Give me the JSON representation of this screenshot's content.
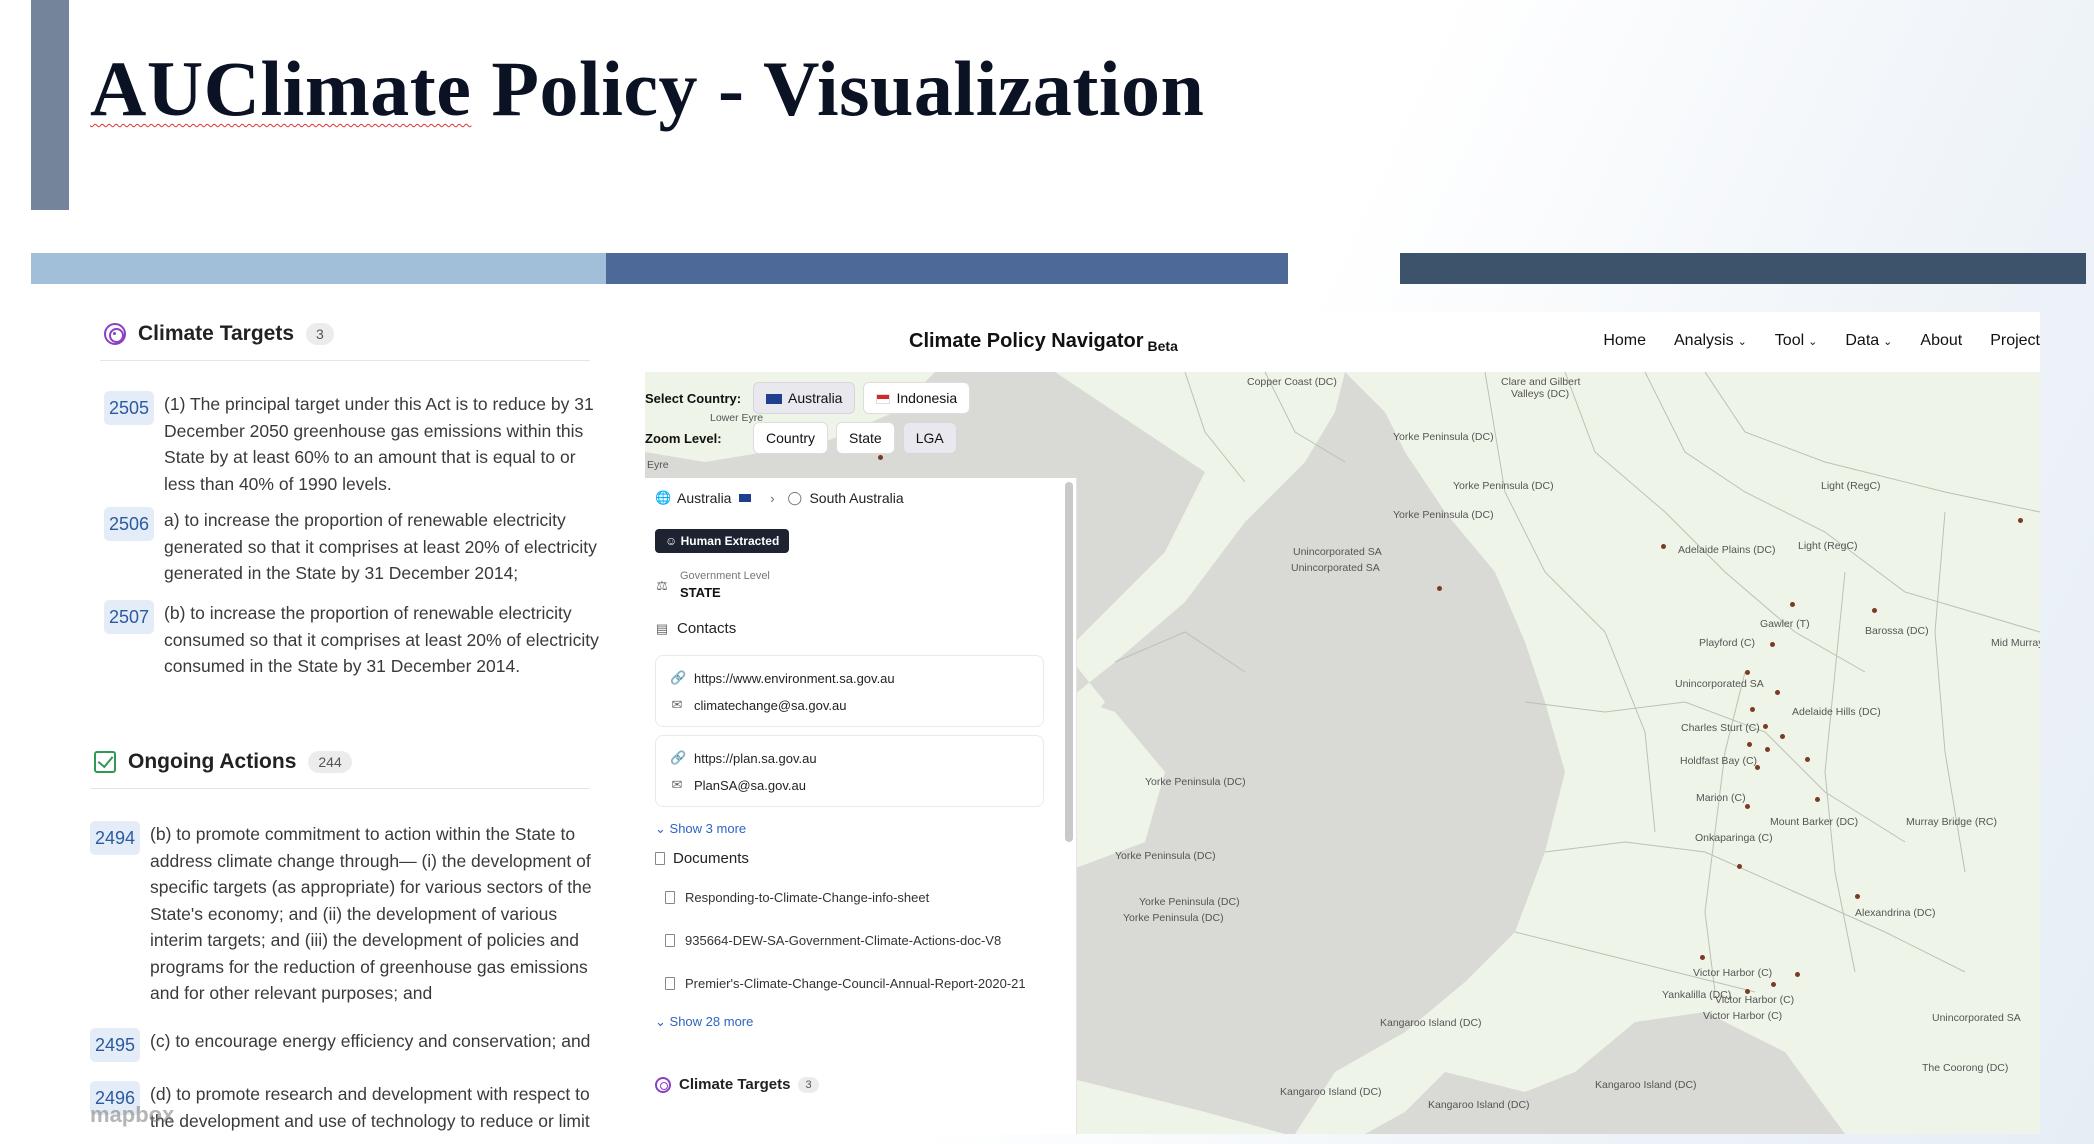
{
  "slide": {
    "title_spell": "AUClimate",
    "title_rest": " Policy - Visualization"
  },
  "left_panel": {
    "climate_targets": {
      "title": "Climate Targets",
      "count": "3",
      "items": [
        {
          "id": "2505",
          "text": "(1) The principal target under this Act is to reduce by 31 December 2050 greenhouse gas emissions within this State by at least 60% to an amount that is equal to or less than 40% of 1990 levels."
        },
        {
          "id": "2506",
          "text": "a) to increase the proportion of renewable electricity generated so that it comprises at least 20% of electricity generated in the State by 31 December 2014;"
        },
        {
          "id": "2507",
          "text": "(b) to increase the proportion of renewable electricity consumed so that it comprises at least 20% of electricity consumed in the State by 31 December 2014."
        }
      ]
    },
    "ongoing_actions": {
      "title": "Ongoing Actions",
      "count": "244",
      "items": [
        {
          "id": "2494",
          "text": "(b) to promote commitment to action within the State to address climate change through— (i) the development of specific targets (as appropriate) for various sectors of the State's economy; and (ii) the development of various interim targets; and (iii) the development of policies and programs for the reduction of greenhouse gas emissions and for other relevant purposes; and"
        },
        {
          "id": "2495",
          "text": "(c) to encourage energy efficiency and conservation; and"
        },
        {
          "id": "2496",
          "text": "(d) to promote research and development with respect to the development and use of technology to reduce or limit"
        }
      ]
    },
    "watermark": "mapbox"
  },
  "app": {
    "brand": "Climate Policy Navigator",
    "beta": "Beta",
    "nav": {
      "home": "Home",
      "analysis": "Analysis",
      "tool": "Tool",
      "data": "Data",
      "about": "About",
      "project": "Project"
    },
    "controls": {
      "country_label": "Select Country:",
      "countries": [
        "Australia",
        "Indonesia"
      ],
      "zoom_label": "Zoom Level:",
      "zoom_levels": [
        "Country",
        "State",
        "LGA"
      ],
      "selected_zoom": "LGA"
    },
    "side_panel": {
      "breadcrumb": [
        "Australia",
        "South Australia"
      ],
      "source_badge": "Human Extracted",
      "gov_level_label": "Government Level",
      "gov_level_value": "STATE",
      "contacts_title": "Contacts",
      "contacts": [
        {
          "url": "https://www.environment.sa.gov.au",
          "email": "climatechange@sa.gov.au"
        },
        {
          "url": "https://plan.sa.gov.au",
          "email": "PlanSA@sa.gov.au"
        }
      ],
      "show_more_contacts": "Show 3 more",
      "documents_title": "Documents",
      "documents": [
        "Responding-to-Climate-Change-info-sheet",
        "935664-DEW-SA-Government-Climate-Actions-doc-V8",
        "Premier's-Climate-Change-Council-Annual-Report-2020-21"
      ],
      "show_more_documents": "Show 28 more",
      "targets_title": "Climate Targets",
      "targets_count": "3"
    },
    "map_labels": {
      "copper_coast": "Copper Coast (DC)",
      "clare_gilbert_1": "Clare and Gilbert",
      "clare_gilbert_2": "Valleys (DC)",
      "lower_eyre": "Lower Eyre",
      "eyre": "Eyre",
      "york_1": "Yorke Peninsula (DC)",
      "york_2": "Yorke Peninsula (DC)",
      "york_3": "Yorke Peninsula (DC)",
      "york_4": "Yorke Peninsula (DC)",
      "york_5": "Yorke Peninsula (DC)",
      "york_6": "Yorke Peninsula (DC)",
      "york_7": "Yorke Peninsula (DC)",
      "light_1": "Light (RegC)",
      "light_2": "Light (RegC)",
      "unincorp_1": "Unincorporated SA",
      "unincorp_2": "Unincorporated SA",
      "unincorp_3": "Unincorporated SA",
      "unincorp_4": "Unincorporated SA",
      "adelaide_plains": "Adelaide Plains (DC)",
      "gawler": "Gawler (T)",
      "barossa": "Barossa (DC)",
      "mid_murray": "Mid Murray",
      "playford": "Playford (C)",
      "adelaide_hills": "Adelaide Hills (DC)",
      "charles_sturt": "Charles Sturt (C)",
      "holdfast_bay": "Holdfast Bay (C)",
      "marion": "Marion (C)",
      "mount_barker": "Mount Barker (DC)",
      "murray_bridge": "Murray Bridge (RC)",
      "onkaparinga": "Onkaparinga (C)",
      "alexandrina": "Alexandrina (DC)",
      "victor_harbor_1": "Victor Harbor (C)",
      "victor_harbor_2": "Victor Harbor (C)",
      "victor_harbor_3": "Victor Harbor (C)",
      "yankalilla": "Yankalilla (DC)",
      "kangaroo_1": "Kangaroo Island (DC)",
      "kangaroo_2": "Kangaroo Island (DC)",
      "kangaroo_3": "Kangaroo Island (DC)",
      "kangaroo_4": "Kangaroo Island (DC)",
      "coorong": "The Coorong (DC)"
    }
  },
  "colors": {
    "accent_bar": "#74849a",
    "stripe_light": "#a2bfda",
    "stripe_mid": "#4d6997",
    "stripe_dark": "#3d526b",
    "target_purple": "#8a3fc7",
    "action_green": "#2e9a55",
    "id_badge_bg": "#e4ecf7",
    "id_badge_text": "#2b5aa0",
    "link_blue": "#2f63c4",
    "land_green": "#eef5e8",
    "sea_gray": "#d9d9d6"
  },
  "icons": {
    "climate_targets": "target-icon",
    "ongoing_actions": "check-square-icon",
    "breadcrumb_root": "globe-icon",
    "breadcrumb_state": "map-pin-icon",
    "badge": "user-icon",
    "gov_level": "scale-icon",
    "contacts": "id-card-icon",
    "link": "link-icon",
    "email": "mail-icon",
    "documents": "file-icon",
    "nav_caret": "chevron-down-icon"
  }
}
